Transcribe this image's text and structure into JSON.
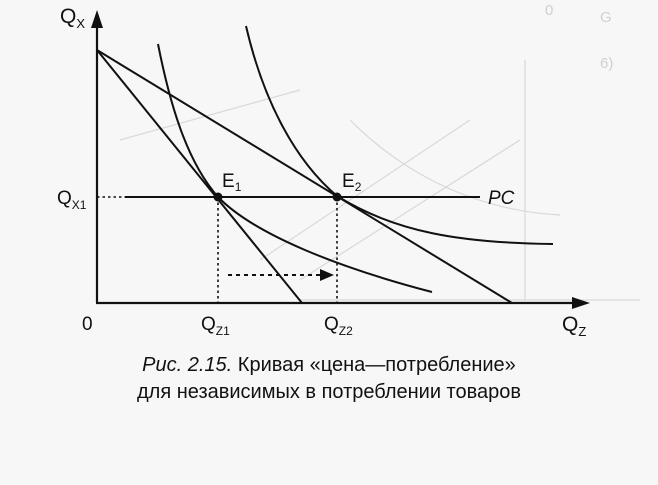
{
  "figure": {
    "axes": {
      "y_label_main": "Q",
      "y_label_sub": "X",
      "x_label_main": "Q",
      "x_label_sub": "Z",
      "origin": "0"
    },
    "levels": {
      "qx1_main": "Q",
      "qx1_sub": "X1",
      "qz1_main": "Q",
      "qz1_sub": "Z1",
      "qz2_main": "Q",
      "qz2_sub": "Z2"
    },
    "points": {
      "e1_main": "E",
      "e1_sub": "1",
      "e2_main": "E",
      "e2_sub": "2"
    },
    "curve_label": "PC"
  },
  "caption": {
    "prefix": "Рис. 2.15.",
    "line1": "Кривая «цена—потребление»",
    "line2": "для независимых в потреблении товаров"
  }
}
